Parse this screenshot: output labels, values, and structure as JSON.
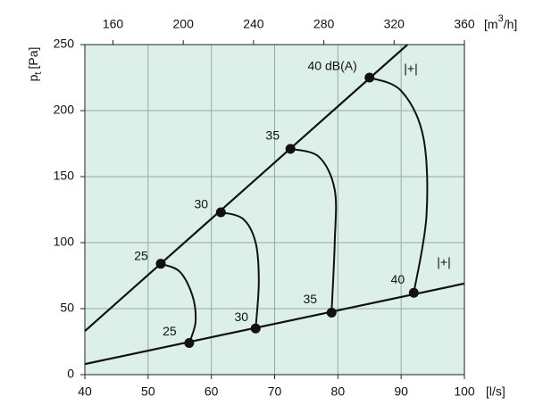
{
  "chart_data": {
    "type": "line",
    "xlim": [
      40,
      100
    ],
    "xticks": [
      40,
      50,
      60,
      70,
      80,
      90,
      100
    ],
    "x_unit": "[l/s]",
    "x2lim": [
      144,
      360
    ],
    "x2ticks": [
      160,
      200,
      240,
      280,
      320,
      360
    ],
    "x2_unit": {
      "main": "[m",
      "sup": "3",
      "end": "/h]"
    },
    "ylim": [
      0,
      250
    ],
    "yticks": [
      0,
      50,
      100,
      150,
      200,
      250
    ],
    "y_label": {
      "main": "p",
      "sub": "t",
      "unit": "[Pa]"
    },
    "grid": true,
    "background": "#dcefe9",
    "color": "#111111",
    "lines": [
      {
        "x": [
          40,
          91
        ],
        "y": [
          33,
          250
        ]
      },
      {
        "x": [
          40,
          100
        ],
        "y": [
          8,
          69
        ]
      }
    ],
    "curves": [
      {
        "x": [
          52,
          55,
          57,
          57.5,
          56.5
        ],
        "y": [
          84,
          78,
          60,
          40,
          24
        ]
      },
      {
        "x": [
          61.5,
          65,
          67,
          67.5,
          67
        ],
        "y": [
          123,
          118,
          100,
          70,
          35
        ]
      },
      {
        "x": [
          72.5,
          77,
          79.5,
          79.5,
          79
        ],
        "y": [
          171,
          165,
          140,
          100,
          47
        ]
      },
      {
        "x": [
          85,
          90,
          93.5,
          94,
          92
        ],
        "y": [
          225,
          215,
          180,
          120,
          62
        ]
      }
    ],
    "points": {
      "x": [
        52,
        61.5,
        72.5,
        85,
        56.5,
        67,
        79,
        92
      ],
      "y": [
        84,
        123,
        171,
        225,
        24,
        35,
        47,
        62
      ],
      "labels": [
        "25",
        "30",
        "35",
        "40 dB(A)",
        "25",
        "30",
        "35",
        "40"
      ]
    },
    "annotations": [
      "|+|",
      "|+|"
    ]
  }
}
